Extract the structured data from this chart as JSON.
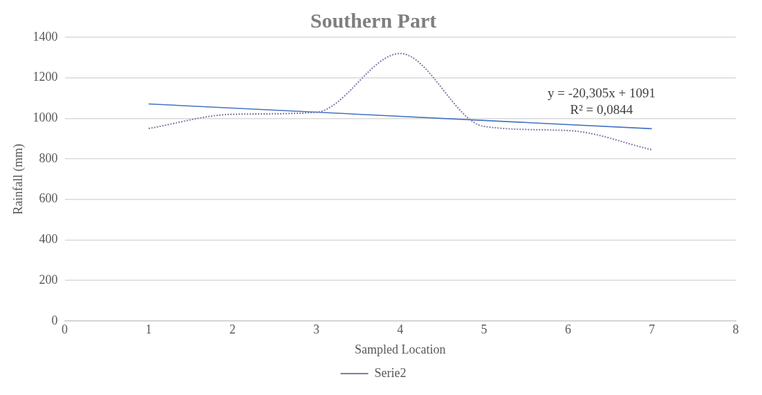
{
  "chart_data": {
    "type": "line",
    "title": "Southern Part",
    "xlabel": "Sampled Location",
    "ylabel": "Rainfall (mm)",
    "x": [
      1,
      2,
      3,
      4,
      5,
      6,
      7
    ],
    "series": [
      {
        "name": "Serie2",
        "color": "#7b7ba6",
        "values": [
          950,
          1020,
          1030,
          1320,
          960,
          940,
          845
        ],
        "line_style": "dotted"
      },
      {
        "type": "line",
        "color": "#4472c4",
        "x": [
          1,
          7
        ],
        "values": [
          1071,
          949
        ],
        "line_style": "solid"
      }
    ],
    "xlim": [
      0,
      8
    ],
    "xticks": [
      0,
      1,
      2,
      3,
      4,
      5,
      6,
      7,
      8
    ],
    "ylim": [
      0,
      1400
    ],
    "yticks": [
      0,
      200,
      400,
      600,
      800,
      1000,
      1200,
      1400
    ],
    "grid": "y",
    "legend": "bottom",
    "marker": "none",
    "annotations": [
      "y = -20,305x + 1091",
      "R² = 0,0844"
    ]
  }
}
